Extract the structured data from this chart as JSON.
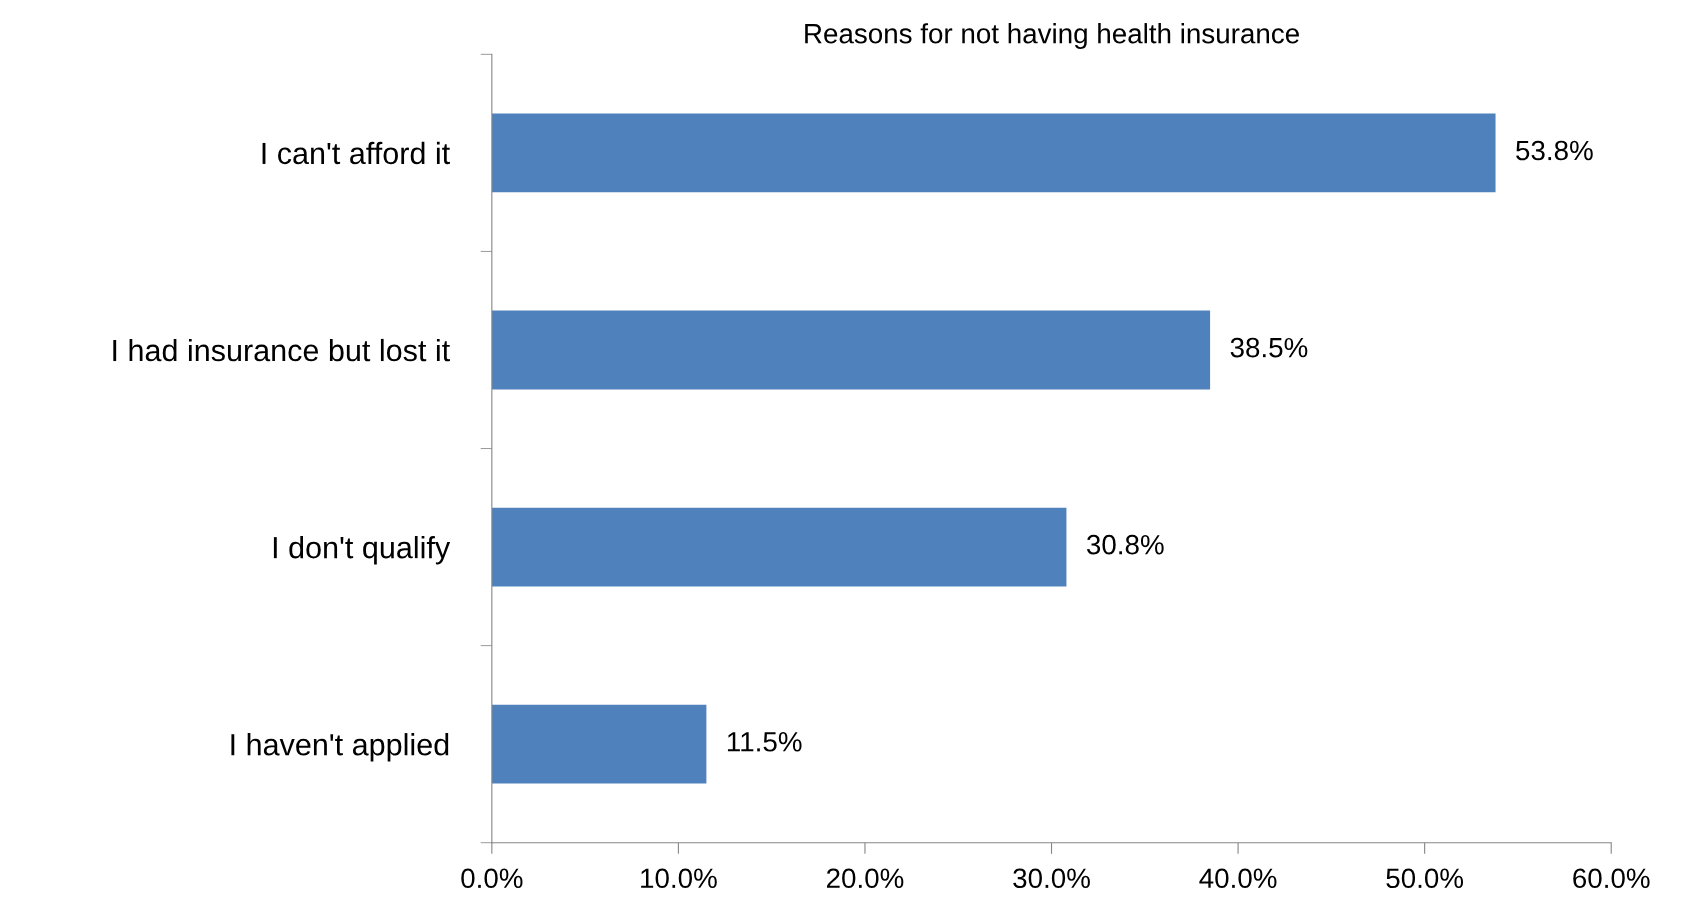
{
  "chart_data": {
    "type": "bar",
    "orientation": "horizontal",
    "title": "Reasons for not having health insurance",
    "categories": [
      "I can't afford it",
      "I had insurance but lost it",
      "I don't qualify",
      "I haven't applied"
    ],
    "values": [
      53.8,
      38.5,
      30.8,
      11.5
    ],
    "value_labels": [
      "53.8%",
      "38.5%",
      "30.8%",
      "11.5%"
    ],
    "color": "#4f81bd",
    "xlim": [
      0,
      60
    ],
    "xticks": [
      {
        "value": 0,
        "label": "0.0%"
      },
      {
        "value": 10,
        "label": "10.0%"
      },
      {
        "value": 20,
        "label": "20.0%"
      },
      {
        "value": 30,
        "label": "30.0%"
      },
      {
        "value": 40,
        "label": "40.0%"
      },
      {
        "value": 50,
        "label": "50.0%"
      },
      {
        "value": 60,
        "label": "60.0%"
      }
    ],
    "grid": false
  }
}
